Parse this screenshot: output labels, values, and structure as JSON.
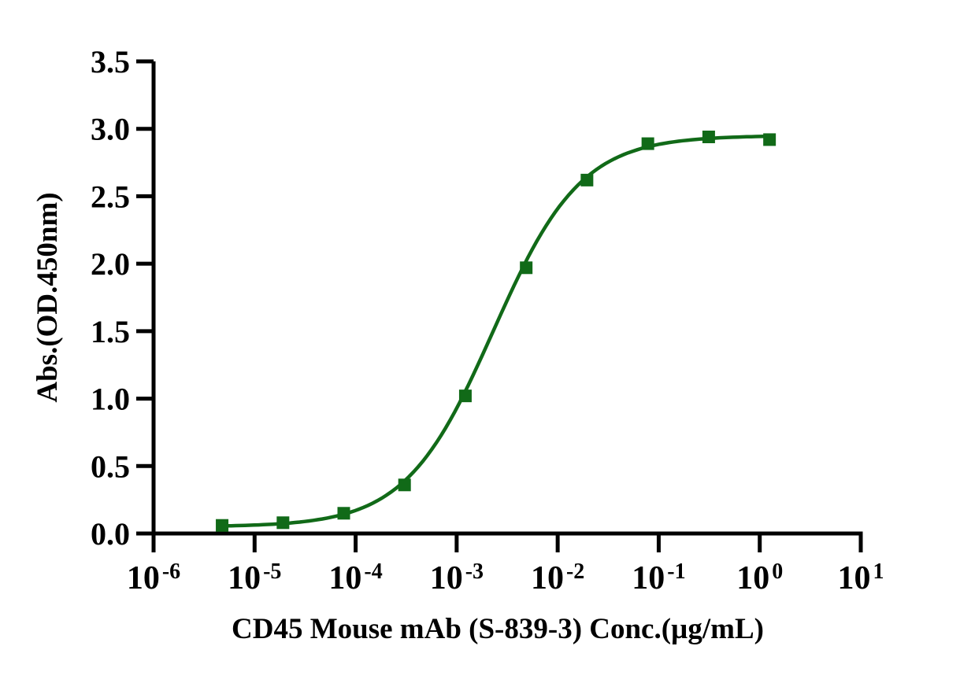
{
  "figure": {
    "background": "#ffffff",
    "axis_color": "#000000"
  },
  "chart_data": {
    "type": "line",
    "title": "",
    "xlabel": "CD45 Mouse mAb (S-839-3) Conc.(µg/mL)",
    "ylabel": "Abs.(OD.450nm)",
    "x_scale": "log10",
    "x_tick_base": "10",
    "x_tick_exponents": [
      -6,
      -5,
      -4,
      -3,
      -2,
      -1,
      0,
      1
    ],
    "xlim_exponents": [
      -6,
      1
    ],
    "ylim": [
      0,
      3.5
    ],
    "y_ticks": [
      "0.0",
      "0.5",
      "1.0",
      "1.5",
      "2.0",
      "2.5",
      "3.0",
      "3.5"
    ],
    "grid": false,
    "legend": "none",
    "series": [
      {
        "name": "CD45 Mouse mAb (S-839-3)",
        "marker": "square",
        "color": "#116a18",
        "points": [
          {
            "x": 4.77e-06,
            "y": 0.06
          },
          {
            "x": 1.91e-05,
            "y": 0.08
          },
          {
            "x": 7.63e-05,
            "y": 0.15
          },
          {
            "x": 0.000305,
            "y": 0.36
          },
          {
            "x": 0.00122,
            "y": 1.02
          },
          {
            "x": 0.00488,
            "y": 1.97
          },
          {
            "x": 0.0195,
            "y": 2.62
          },
          {
            "x": 0.0781,
            "y": 2.89
          },
          {
            "x": 0.3125,
            "y": 2.94
          },
          {
            "x": 1.25,
            "y": 2.92
          }
        ],
        "fit_4pl": {
          "bottom": 0.05,
          "top": 2.95,
          "ec50": 0.0023,
          "hill": 1.0
        }
      }
    ]
  }
}
